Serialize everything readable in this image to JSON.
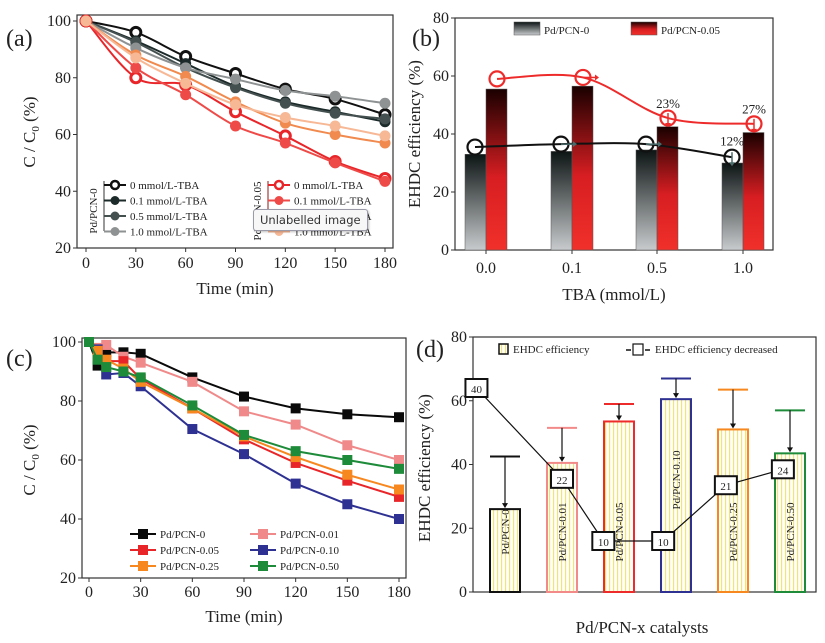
{
  "tooltip": {
    "text": "Unlabelled image"
  },
  "chart_data": [
    {
      "panel": "(a)",
      "type": "line",
      "xlabel": "Time (min)",
      "ylabel": "C / C0 (%)",
      "x": [
        0,
        30,
        60,
        90,
        120,
        150,
        180
      ],
      "xticks": [
        0,
        30,
        60,
        90,
        120,
        150,
        180
      ],
      "yticks": [
        20,
        40,
        60,
        80,
        100
      ],
      "xlim": [
        0,
        180
      ],
      "ylim": [
        20,
        100
      ],
      "legend_groups": [
        {
          "title": "Pd/PCN-0",
          "title_color": "#333333"
        },
        {
          "title": "Pd/PCN-0.05",
          "title_color": "#8b1a1a"
        }
      ],
      "series": [
        {
          "name": "0 mmol/L-TBA",
          "group": "Pd/PCN-0",
          "color": "#111111",
          "hollow": true,
          "values": [
            100,
            96,
            87.5,
            81.5,
            76,
            72.5,
            67
          ]
        },
        {
          "name": "0.1 mmol/L-TBA",
          "group": "Pd/PCN-0",
          "color": "#1c2a2a",
          "hollow": false,
          "values": [
            100,
            93,
            85,
            77,
            71.5,
            68,
            64.5
          ]
        },
        {
          "name": "0.5 mmol/L-TBA",
          "group": "Pd/PCN-0",
          "color": "#44504f",
          "hollow": false,
          "values": [
            100,
            92.5,
            83.5,
            76.5,
            71,
            67.5,
            65.5
          ]
        },
        {
          "name": "1.0 mmol/L-TBA",
          "group": "Pd/PCN-0",
          "color": "#8e9292",
          "hollow": false,
          "values": [
            100,
            90.5,
            83.5,
            79.5,
            75.5,
            73.5,
            71
          ]
        },
        {
          "name": "0 mmol/L-TBA",
          "group": "Pd/PCN-0.05",
          "color": "#e8262a",
          "hollow": true,
          "values": [
            100,
            80,
            77.5,
            68,
            59.5,
            50.5,
            44.5
          ]
        },
        {
          "name": "0.1 mmol/L-TBA",
          "group": "Pd/PCN-0.05",
          "color": "#ee4a48",
          "hollow": false,
          "values": [
            100,
            83.5,
            74,
            63,
            57,
            50,
            43.5
          ]
        },
        {
          "name": "0.5 mmol/L-TBA",
          "group": "Pd/PCN-0.05",
          "color": "#f08a4e",
          "hollow": false,
          "values": [
            100,
            88,
            80.5,
            71.5,
            64,
            60,
            57
          ]
        },
        {
          "name": "1.0 mmol/L-TBA",
          "group": "Pd/PCN-0.05",
          "color": "#f7b896",
          "hollow": false,
          "values": [
            100,
            87,
            78,
            70.5,
            66,
            63,
            59.5
          ]
        }
      ]
    },
    {
      "panel": "(b)",
      "type": "bar",
      "xlabel": "TBA (mmol/L)",
      "ylabel": "EHDC efficiency (%)",
      "categories": [
        "0.0",
        "0.1",
        "0.5",
        "1.0"
      ],
      "yticks": [
        0,
        20,
        40,
        60,
        80
      ],
      "ylim": [
        0,
        80
      ],
      "legend": "top",
      "series": [
        {
          "name": "Pd/PCN-0",
          "values": [
            33,
            34,
            34.5,
            30
          ],
          "marker_values": [
            35.5,
            36.5,
            36.5,
            32
          ],
          "line_color": "#111111",
          "bar_top": "#0d1414",
          "bar_bottom": "#c8cbcd"
        },
        {
          "name": "Pd/PCN-0.05",
          "values": [
            55.5,
            56.5,
            42.5,
            40.5
          ],
          "marker_values": [
            59,
            59.5,
            45.5,
            43.5
          ],
          "line_color": "#ee2b2b",
          "bar_top": "#1a0000",
          "bar_bottom": "#f0302a"
        }
      ],
      "annotations": [
        {
          "text": "23%",
          "category": "0.5",
          "series": "Pd/PCN-0.05",
          "y": 49
        },
        {
          "text": "27%",
          "category": "1.0",
          "series": "Pd/PCN-0.05",
          "y": 47
        },
        {
          "text": "12%",
          "category": "1.0",
          "series": "Pd/PCN-0",
          "y": 36
        }
      ]
    },
    {
      "panel": "(c)",
      "type": "line",
      "xlabel": "Time (min)",
      "ylabel": "C / C0 (%)",
      "x": [
        0,
        5,
        10,
        20,
        30,
        60,
        90,
        120,
        150,
        180
      ],
      "xticks": [
        0,
        30,
        60,
        90,
        120,
        150,
        180
      ],
      "yticks": [
        20,
        40,
        60,
        80,
        100
      ],
      "xlim": [
        0,
        180
      ],
      "ylim": [
        20,
        100
      ],
      "legend": "bottom",
      "series": [
        {
          "name": "Pd/PCN-0",
          "color": "#0a0a0a",
          "values": [
            100,
            92,
            96.5,
            96.5,
            96,
            88,
            81.5,
            77.5,
            75.5,
            74.5
          ]
        },
        {
          "name": "Pd/PCN-0.01",
          "color": "#f08a8a",
          "values": [
            100,
            98,
            99,
            95,
            93,
            86.5,
            76.5,
            72,
            65,
            60
          ]
        },
        {
          "name": "Pd/PCN-0.05",
          "color": "#e8262a",
          "values": [
            100,
            95,
            93.5,
            93.5,
            87.5,
            77.5,
            67,
            59,
            53,
            47.5
          ]
        },
        {
          "name": "Pd/PCN-0.10",
          "color": "#2e3192",
          "values": [
            100,
            97.5,
            89,
            89.5,
            85,
            70.5,
            62,
            52,
            45,
            40
          ]
        },
        {
          "name": "Pd/PCN-0.25",
          "color": "#f7871f",
          "values": [
            100,
            97,
            94,
            91,
            86.5,
            77.5,
            68,
            61,
            55,
            50
          ]
        },
        {
          "name": "Pd/PCN-0.50",
          "color": "#1e8b3a",
          "values": [
            100,
            94,
            91.5,
            90,
            88,
            78.5,
            68.5,
            63,
            60,
            57
          ]
        }
      ]
    },
    {
      "panel": "(d)",
      "type": "bar",
      "xlabel": "Pd/PCN-x catalysts",
      "ylabel": "EHDC efficiency (%)",
      "yticks": [
        0,
        20,
        40,
        60,
        80
      ],
      "ylim": [
        0,
        80
      ],
      "legend": "top",
      "legend_entries": [
        "EHDC efficiency",
        "EHDC efficiency decreased"
      ],
      "categories": [
        "Pd/PCN-0",
        "Pd/PCN-0.01",
        "Pd/PCN-0.05",
        "Pd/PCN-0.10",
        "Pd/PCN-0.25",
        "Pd/PCN-0.50"
      ],
      "colors": [
        "#111111",
        "#f28a8a",
        "#ee2b2b",
        "#2e3192",
        "#f7871f",
        "#1e8b3a"
      ],
      "values": [
        26,
        40.5,
        53.5,
        60.5,
        51,
        43.5
      ],
      "initial_values": [
        42.5,
        51.5,
        59,
        67,
        63.5,
        57
      ],
      "decrease_labels": [
        "40",
        "22",
        "10",
        "10",
        "21",
        "24"
      ],
      "decrease_label_y": [
        64,
        35.5,
        16,
        16,
        33.5,
        38.5
      ],
      "decrease_label_xoffset": [
        -0.3,
        0,
        -0.55,
        -0.45,
        -0.25,
        -0.25
      ]
    }
  ]
}
